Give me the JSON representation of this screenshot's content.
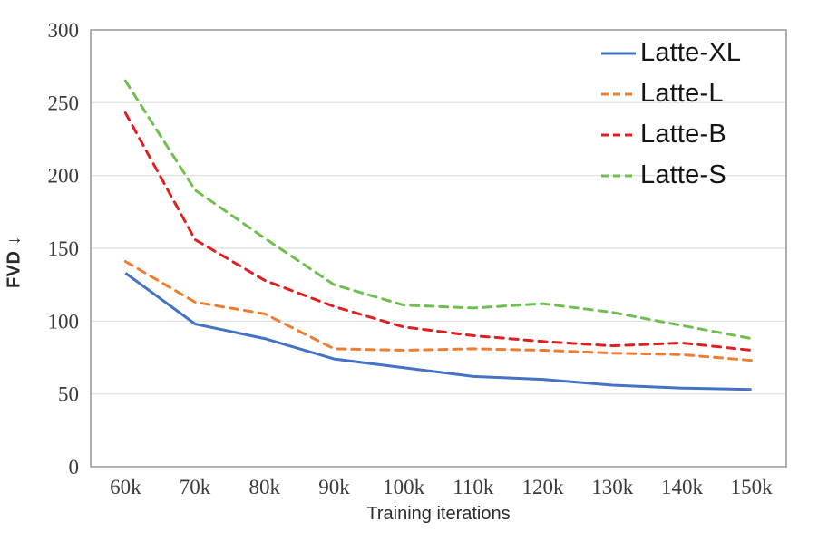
{
  "chart_data": {
    "type": "line",
    "title": "",
    "xlabel": "Training iterations",
    "ylabel": "FVD ↓",
    "categories": [
      "60k",
      "70k",
      "80k",
      "90k",
      "100k",
      "110k",
      "120k",
      "130k",
      "140k",
      "150k"
    ],
    "ylim": [
      0,
      300
    ],
    "ytick_step": 50,
    "ytick_labels": [
      "0",
      "50",
      "100",
      "150",
      "200",
      "250",
      "300"
    ],
    "grid": "horizontal",
    "legend_position": "top-right-inside",
    "axis_color": "#9b9b9b",
    "gridline_color": "#e2e2e2",
    "tick_label_color": "#3a3a3a",
    "series": [
      {
        "name": "Latte-XL",
        "color": "#4472C4",
        "style": "solid",
        "values": [
          133,
          98,
          88,
          74,
          68,
          62,
          60,
          56,
          54,
          53
        ]
      },
      {
        "name": "Latte-L",
        "color": "#ED7D31",
        "style": "dashed",
        "values": [
          141,
          113,
          105,
          81,
          80,
          81,
          80,
          78,
          77,
          73
        ]
      },
      {
        "name": "Latte-B",
        "color": "#E02020",
        "style": "dashed",
        "values": [
          243,
          156,
          128,
          110,
          96,
          90,
          86,
          83,
          85,
          80
        ]
      },
      {
        "name": "Latte-S",
        "color": "#70BE4F",
        "style": "dashed",
        "values": [
          265,
          190,
          157,
          125,
          111,
          109,
          112,
          106,
          97,
          88
        ]
      }
    ]
  }
}
